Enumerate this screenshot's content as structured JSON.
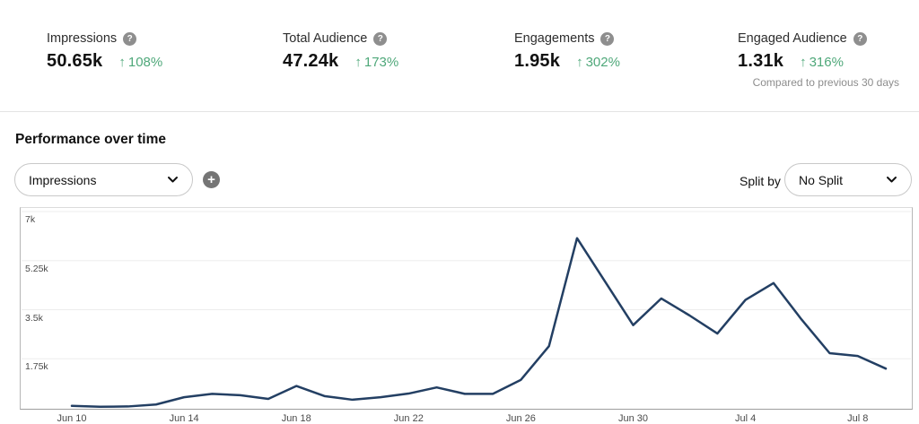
{
  "metrics": [
    {
      "label": "Impressions",
      "value": "50.65k",
      "delta": "108%"
    },
    {
      "label": "Total Audience",
      "value": "47.24k",
      "delta": "173%"
    },
    {
      "label": "Engagements",
      "value": "1.95k",
      "delta": "302%"
    },
    {
      "label": "Engaged Audience",
      "value": "1.31k",
      "delta": "316%"
    }
  ],
  "compare_note": "Compared to previous 30 days",
  "icons": {
    "up_arrow": "↑",
    "plus": "+",
    "help": "?"
  },
  "section": {
    "title": "Performance over time",
    "metric_select_value": "Impressions",
    "split_by_label": "Split by",
    "split_select_value": "No Split"
  },
  "colors": {
    "delta_green": "#4FA87A",
    "line_navy": "#233F63",
    "gridline": "#ededed",
    "axis_gray": "#9e9e9e"
  },
  "chart_data": {
    "type": "line",
    "title": "Performance over time",
    "xlabel": "",
    "ylabel": "",
    "ylim": [
      0,
      7000
    ],
    "grid": "horizontal",
    "legend": "none",
    "x": [
      "Jun 10",
      "Jun 11",
      "Jun 12",
      "Jun 13",
      "Jun 14",
      "Jun 15",
      "Jun 16",
      "Jun 17",
      "Jun 18",
      "Jun 19",
      "Jun 20",
      "Jun 21",
      "Jun 22",
      "Jun 23",
      "Jun 24",
      "Jun 25",
      "Jun 26",
      "Jun 27",
      "Jun 28",
      "Jun 29",
      "Jun 30",
      "Jul 1",
      "Jul 2",
      "Jul 3",
      "Jul 4",
      "Jul 5",
      "Jul 6",
      "Jul 7",
      "Jul 8",
      "Jul 9"
    ],
    "series": [
      {
        "name": "Impressions",
        "values": [
          70,
          40,
          50,
          120,
          380,
          500,
          450,
          320,
          780,
          420,
          290,
          380,
          510,
          730,
          500,
          500,
          1000,
          2200,
          6050,
          4500,
          2950,
          3900,
          3300,
          2650,
          3850,
          4450,
          3150,
          1950,
          1850,
          1400
        ]
      }
    ],
    "y_ticks": [
      {
        "value": 7000,
        "label": "7k"
      },
      {
        "value": 5250,
        "label": "5.25k"
      },
      {
        "value": 3500,
        "label": "3.5k"
      },
      {
        "value": 1750,
        "label": "1.75k"
      }
    ],
    "x_ticks": [
      {
        "index": 0,
        "label": "Jun 10"
      },
      {
        "index": 4,
        "label": "Jun 14"
      },
      {
        "index": 8,
        "label": "Jun 18"
      },
      {
        "index": 12,
        "label": "Jun 22"
      },
      {
        "index": 16,
        "label": "Jun 26"
      },
      {
        "index": 20,
        "label": "Jun 30"
      },
      {
        "index": 24,
        "label": "Jul 4"
      },
      {
        "index": 28,
        "label": "Jul 8"
      }
    ]
  }
}
